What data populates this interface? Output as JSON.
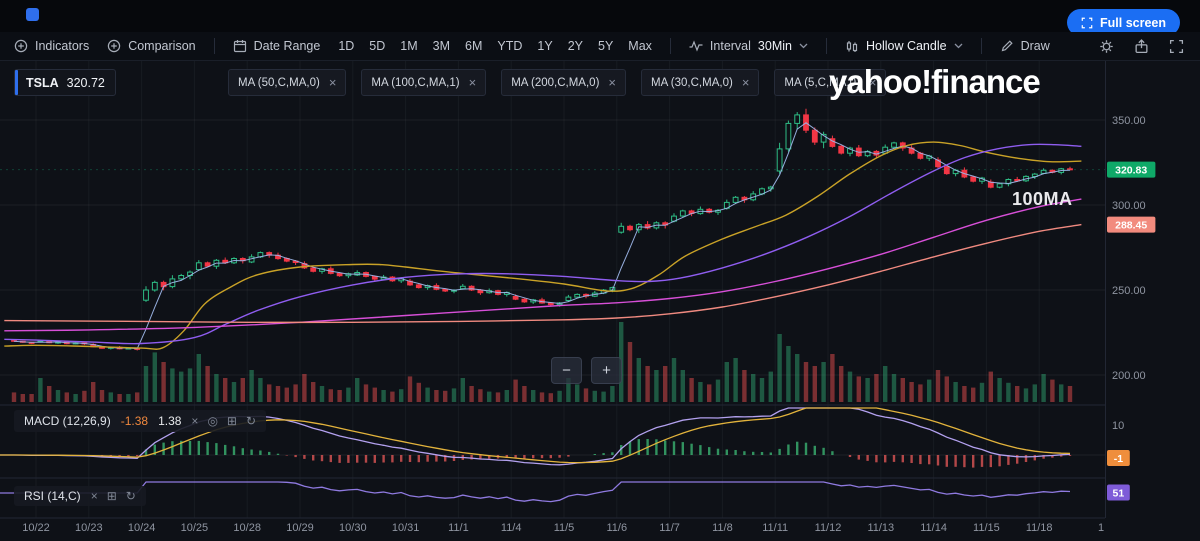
{
  "topbar": {
    "fullscreen_button": "Full screen"
  },
  "toolbar": {
    "indicators": "Indicators",
    "comparison": "Comparison",
    "date_range": "Date Range",
    "ranges": [
      "1D",
      "5D",
      "1M",
      "3M",
      "6M",
      "YTD",
      "1Y",
      "2Y",
      "5Y",
      "Max"
    ],
    "interval_label": "Interval",
    "interval_value": "30Min",
    "chart_style": "Hollow Candle",
    "draw": "Draw"
  },
  "legend": {
    "symbol": "TSLA",
    "price": "320.72",
    "ma_tags": [
      "MA (50,C,MA,0)",
      "MA (100,C,MA,1)",
      "MA (200,C,MA,0)",
      "MA (30,C,MA,0)",
      "MA (5,C,MA,0)"
    ]
  },
  "watermark": "yahoo!finance",
  "annotation": "100MA",
  "macd_panel": {
    "label": "MACD (12,26,9)",
    "value1": "-1.38",
    "value2": "1.38"
  },
  "rsi_panel": {
    "label": "RSI (14,C)"
  },
  "icons": {
    "close": "×",
    "visibility": "◎",
    "settings": "⊞",
    "reset": "↻",
    "zoom_out": "−",
    "zoom_in": "+"
  },
  "axis": {
    "price_labels": [
      {
        "value": 350,
        "text": "350.00"
      },
      {
        "value": 300,
        "text": "300.00"
      },
      {
        "value": 250,
        "text": "250.00"
      },
      {
        "value": 200,
        "text": "200.00"
      }
    ],
    "macd_label": {
      "value": 10,
      "text": "10"
    },
    "extra_date_label": "1",
    "badges": {
      "price": {
        "value": 320.83,
        "text": "320.83",
        "color": "#0fa968"
      },
      "ma200": {
        "value": 288.45,
        "text": "288.45",
        "color": "#f28b7e"
      },
      "macd": {
        "value": -1,
        "text": "-1",
        "color": "#ef8e3c"
      },
      "rsi": {
        "value": 51,
        "text": "51",
        "color": "#7e5bd8"
      }
    }
  },
  "chart_data": {
    "type": "candlestick",
    "symbol": "TSLA",
    "interval": "30Min",
    "ylim": [
      195,
      365
    ],
    "price_gridlines": [
      350,
      300,
      250,
      200
    ],
    "last_price": 320.83,
    "colors": {
      "up": "#2ebd85",
      "down": "#f23645"
    },
    "macd_colors": {
      "macd": "#b3a1ef",
      "signal": "#e2b33c"
    },
    "rsi_color": "#8f7ae0",
    "days": [
      {
        "label": "",
        "p": [
          220.5,
          219.8,
          219.2,
          218.8
        ],
        "v": [
          0.12,
          0.1,
          0.1
        ],
        "w": 0.6
      },
      {
        "label": "10/22",
        "p": [
          219.5,
          220.0,
          219.0,
          219.4,
          218.4,
          218.9,
          218.3
        ],
        "v": [
          0.3,
          0.2,
          0.15,
          0.12,
          0.1,
          0.14
        ],
        "w": 0.7
      },
      {
        "label": "10/23",
        "p": [
          218.0,
          216.6,
          215.7,
          216.3,
          215.4,
          215.9,
          215.1
        ],
        "v": [
          0.25,
          0.15,
          0.12,
          0.1,
          0.1,
          0.12
        ],
        "w": 0.7
      },
      {
        "label": "10/24",
        "p": [
          244.0,
          250.0,
          254.5,
          252.0,
          256.5,
          258.5,
          260.5
        ],
        "v": [
          0.45,
          0.62,
          0.5,
          0.42,
          0.38,
          0.42
        ],
        "w": 2.2
      },
      {
        "label": "10/25",
        "p": [
          262.0,
          266.0,
          264.0,
          267.5,
          266.0,
          268.5,
          267.2
        ],
        "v": [
          0.6,
          0.45,
          0.35,
          0.3,
          0.25,
          0.3
        ],
        "w": 1.6
      },
      {
        "label": "10/28",
        "p": [
          266.5,
          269.5,
          272.0,
          270.5,
          268.5,
          267.0,
          266.2
        ],
        "v": [
          0.4,
          0.3,
          0.22,
          0.2,
          0.18,
          0.22
        ],
        "w": 1.5
      },
      {
        "label": "10/29",
        "p": [
          265.5,
          263.0,
          261.0,
          262.5,
          259.8,
          258.4,
          259.6
        ],
        "v": [
          0.35,
          0.25,
          0.2,
          0.16,
          0.15,
          0.18
        ],
        "w": 1.4
      },
      {
        "label": "10/30",
        "p": [
          258.8,
          260.3,
          258.0,
          256.4,
          257.6,
          255.4,
          257.0
        ],
        "v": [
          0.3,
          0.22,
          0.18,
          0.15,
          0.13,
          0.16
        ],
        "w": 1.3
      },
      {
        "label": "10/31",
        "p": [
          255.2,
          253.0,
          251.4,
          252.6,
          250.4,
          249.4,
          249.9
        ],
        "v": [
          0.32,
          0.24,
          0.18,
          0.15,
          0.14,
          0.17
        ],
        "w": 1.3
      },
      {
        "label": "11/1",
        "p": [
          250.8,
          252.2,
          250.0,
          248.4,
          249.6,
          247.4,
          248.6
        ],
        "v": [
          0.3,
          0.2,
          0.16,
          0.13,
          0.12,
          0.15
        ],
        "w": 1.3
      },
      {
        "label": "11/4",
        "p": [
          246.2,
          244.6,
          243.0,
          244.2,
          242.4,
          241.4,
          242.4
        ],
        "v": [
          0.28,
          0.2,
          0.15,
          0.12,
          0.11,
          0.14
        ],
        "w": 1.2
      },
      {
        "label": "11/5",
        "p": [
          243.8,
          245.8,
          247.4,
          246.4,
          248.2,
          250.0,
          251.4
        ],
        "v": [
          0.3,
          0.22,
          0.17,
          0.14,
          0.13,
          0.2
        ],
        "w": 1.3
      },
      {
        "label": "11/6",
        "p": [
          284.0,
          287.5,
          285.5,
          288.5,
          286.5,
          289.5,
          288.2
        ],
        "v": [
          1.0,
          0.75,
          0.55,
          0.45,
          0.4,
          0.45
        ],
        "w": 2.0
      },
      {
        "label": "11/7",
        "p": [
          290.5,
          293.5,
          296.5,
          295.0,
          297.5,
          295.8,
          296.9
        ],
        "v": [
          0.55,
          0.4,
          0.3,
          0.25,
          0.22,
          0.28
        ],
        "w": 1.6
      },
      {
        "label": "11/8",
        "p": [
          298.0,
          301.5,
          304.5,
          303.0,
          306.5,
          309.5,
          310.5
        ],
        "v": [
          0.5,
          0.55,
          0.4,
          0.35,
          0.3,
          0.38
        ],
        "w": 1.7
      },
      {
        "label": "11/11",
        "p": [
          320.0,
          333.0,
          348.0,
          353.0,
          344.0,
          337.0,
          341.5
        ],
        "v": [
          0.85,
          0.7,
          0.6,
          0.5,
          0.45,
          0.5
        ],
        "w": 3.6
      },
      {
        "label": "11/12",
        "p": [
          339.0,
          334.5,
          330.5,
          333.5,
          329.0,
          331.5,
          329.3
        ],
        "v": [
          0.6,
          0.45,
          0.38,
          0.32,
          0.3,
          0.35
        ],
        "w": 1.8
      },
      {
        "label": "11/13",
        "p": [
          330.5,
          334.0,
          336.5,
          333.5,
          330.5,
          327.5,
          328.8
        ],
        "v": [
          0.45,
          0.35,
          0.3,
          0.25,
          0.22,
          0.28
        ],
        "w": 1.6
      },
      {
        "label": "11/14",
        "p": [
          326.5,
          322.5,
          318.5,
          320.5,
          316.5,
          314.0,
          315.8
        ],
        "v": [
          0.4,
          0.32,
          0.25,
          0.2,
          0.18,
          0.24
        ],
        "w": 1.6
      },
      {
        "label": "11/15",
        "p": [
          313.5,
          310.5,
          312.5,
          315.0,
          314.2,
          316.8,
          318.2
        ],
        "v": [
          0.38,
          0.3,
          0.24,
          0.2,
          0.17,
          0.22
        ],
        "w": 1.5
      },
      {
        "label": "11/18",
        "p": [
          318.6,
          320.4,
          319.2,
          321.3,
          320.83
        ],
        "v": [
          0.35,
          0.28,
          0.22,
          0.2
        ],
        "w": 1.2
      }
    ],
    "ma_lines": [
      {
        "name": "MA (5,C,MA,0)",
        "period": 5,
        "color": "#9db6e8",
        "computed": true
      },
      {
        "name": "MA (30,C,MA,0)",
        "period": 30,
        "color": "#c9a227",
        "points": [
          [
            -0.6,
            217
          ],
          [
            0,
            217.5
          ],
          [
            1,
            216.8
          ],
          [
            2,
            215.8
          ],
          [
            2.4,
            216
          ],
          [
            2.8,
            226
          ],
          [
            3.2,
            242
          ],
          [
            3.7,
            252
          ],
          [
            4.2,
            259
          ],
          [
            5,
            263.5
          ],
          [
            6,
            265
          ],
          [
            6.5,
            265
          ],
          [
            7,
            263.5
          ],
          [
            8,
            260
          ],
          [
            9,
            257
          ],
          [
            10,
            253.5
          ],
          [
            10.8,
            249.5
          ],
          [
            11.3,
            251
          ],
          [
            11.8,
            259
          ],
          [
            12.3,
            270
          ],
          [
            13,
            280
          ],
          [
            13.6,
            287
          ],
          [
            14.2,
            294
          ],
          [
            14.8,
            305
          ],
          [
            15.4,
            318
          ],
          [
            16,
            329
          ],
          [
            16.5,
            335
          ],
          [
            17,
            337
          ],
          [
            17.5,
            335
          ],
          [
            18,
            331
          ],
          [
            18.6,
            327.5
          ],
          [
            19.2,
            325.5
          ],
          [
            19.8,
            325.8
          ]
        ]
      },
      {
        "name": "MA (50,C,MA,0)",
        "period": 50,
        "color": "#8f5df0",
        "points": [
          [
            -0.6,
            221
          ],
          [
            0,
            220.5
          ],
          [
            1,
            219.5
          ],
          [
            2,
            218.5
          ],
          [
            3,
            222
          ],
          [
            3.6,
            230
          ],
          [
            4.2,
            238
          ],
          [
            5,
            246
          ],
          [
            6,
            253
          ],
          [
            7,
            257.5
          ],
          [
            8,
            259.5
          ],
          [
            9,
            259.5
          ],
          [
            10,
            258
          ],
          [
            11,
            255.5
          ],
          [
            11.6,
            255
          ],
          [
            12.2,
            257
          ],
          [
            13,
            263
          ],
          [
            13.8,
            271
          ],
          [
            14.6,
            281
          ],
          [
            15.4,
            293
          ],
          [
            16.2,
            307
          ],
          [
            17,
            320
          ],
          [
            17.6,
            328
          ],
          [
            18.2,
            333
          ],
          [
            18.8,
            335.5
          ],
          [
            19.3,
            335.5
          ],
          [
            19.8,
            334.5
          ]
        ]
      },
      {
        "name": "MA (100,C,MA,1)",
        "period": 100,
        "color": "#d74fd8",
        "points": [
          [
            -0.6,
            226
          ],
          [
            1,
            226.5
          ],
          [
            3,
            228
          ],
          [
            5,
            231
          ],
          [
            7,
            235
          ],
          [
            9,
            239
          ],
          [
            10,
            241
          ],
          [
            11,
            242.5
          ],
          [
            12,
            245
          ],
          [
            13,
            249
          ],
          [
            14,
            255
          ],
          [
            15,
            262.5
          ],
          [
            16,
            271
          ],
          [
            17,
            281
          ],
          [
            18,
            291
          ],
          [
            19,
            299
          ],
          [
            19.8,
            303.5
          ]
        ]
      },
      {
        "name": "MA (200,C,MA,0)",
        "period": 200,
        "color": "#f08a80",
        "points": [
          [
            -0.6,
            232
          ],
          [
            2,
            231.5
          ],
          [
            4,
            231
          ],
          [
            6,
            231
          ],
          [
            8,
            231.5
          ],
          [
            10,
            232.5
          ],
          [
            11,
            233.5
          ],
          [
            12,
            236
          ],
          [
            13,
            240
          ],
          [
            14,
            246
          ],
          [
            15,
            253
          ],
          [
            16,
            261
          ],
          [
            17,
            269.5
          ],
          [
            18,
            277.5
          ],
          [
            19,
            284.5
          ],
          [
            19.8,
            288.45
          ]
        ]
      }
    ]
  }
}
